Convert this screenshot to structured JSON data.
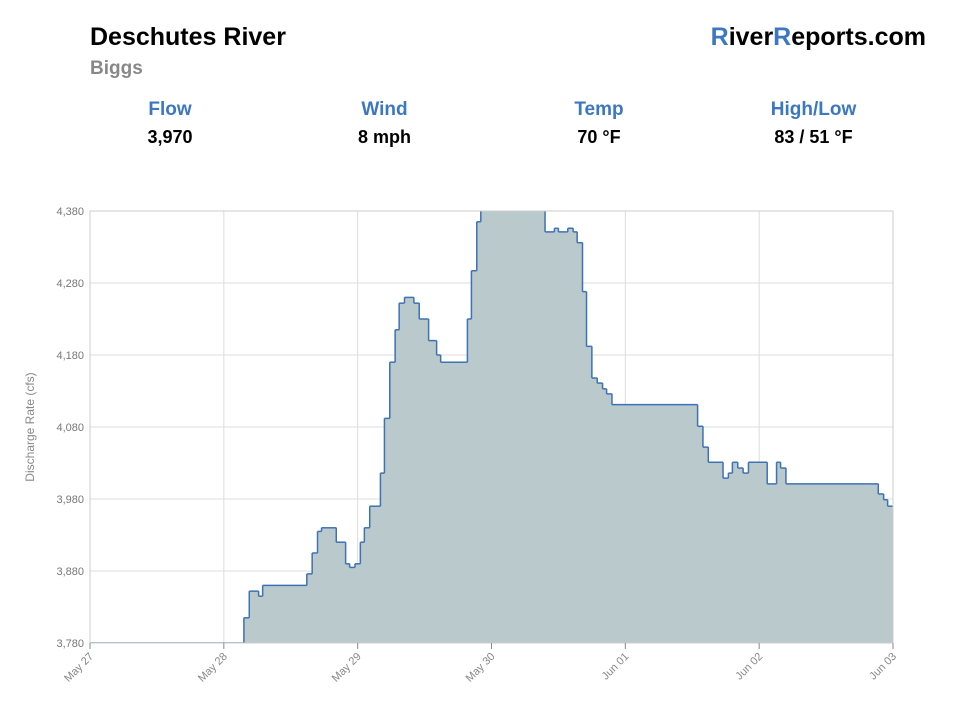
{
  "header": {
    "title": "Deschutes River",
    "subtitle": "Biggs",
    "logo_parts": [
      "R",
      "iver",
      "R",
      "eports.com"
    ]
  },
  "stats": [
    {
      "label": "Flow",
      "value": "3,970"
    },
    {
      "label": "Wind",
      "value": "8 mph"
    },
    {
      "label": "Temp",
      "value": "70 °F"
    },
    {
      "label": "High/Low",
      "value": "83 / 51 °F"
    }
  ],
  "chart_data": {
    "type": "step-area",
    "y_label": "Discharge Rate (cfs)",
    "color": "#3d72b4",
    "fill": "#bac9cc",
    "grid": true,
    "xlim": [
      0,
      6
    ],
    "xticks": [
      {
        "value": 0,
        "label": "May 27"
      },
      {
        "value": 1,
        "label": "May 28"
      },
      {
        "value": 2,
        "label": "May 29"
      },
      {
        "value": 3,
        "label": "May 30"
      },
      {
        "value": 4,
        "label": "Jun 01"
      },
      {
        "value": 5,
        "label": "Jun 02"
      },
      {
        "value": 6,
        "label": "Jun 03"
      }
    ],
    "ylim": [
      3780,
      4380
    ],
    "yticks": [
      {
        "value": 3780,
        "label": "3,780"
      },
      {
        "value": 3880,
        "label": "3,880"
      },
      {
        "value": 3980,
        "label": "3,980"
      },
      {
        "value": 4080,
        "label": "4,080"
      },
      {
        "value": 4180,
        "label": "4,180"
      },
      {
        "value": 4280,
        "label": "4,280"
      },
      {
        "value": 4380,
        "label": "4,380"
      }
    ],
    "x": [
      0,
      1.15,
      1.19,
      1.26,
      1.29,
      1.62,
      1.66,
      1.7,
      1.73,
      1.84,
      1.91,
      1.94,
      1.98,
      2.02,
      2.05,
      2.09,
      2.17,
      2.2,
      2.24,
      2.28,
      2.31,
      2.35,
      2.42,
      2.46,
      2.53,
      2.59,
      2.62,
      2.82,
      2.85,
      2.89,
      2.92,
      3.4,
      3.47,
      3.5,
      3.57,
      3.61,
      3.64,
      3.68,
      3.71,
      3.75,
      3.79,
      3.83,
      3.86,
      3.9,
      4.54,
      4.58,
      4.62,
      4.73,
      4.77,
      4.8,
      4.84,
      4.88,
      4.92,
      5.06,
      5.13,
      5.16,
      5.2,
      5.89,
      5.93,
      5.96
    ],
    "values": [
      3780,
      3815,
      3852,
      3845,
      3860,
      3876,
      3905,
      3935,
      3940,
      3920,
      3890,
      3885,
      3890,
      3920,
      3940,
      3970,
      4016,
      4092,
      4170,
      4215,
      4252,
      4260,
      4252,
      4230,
      4200,
      4180,
      4170,
      4230,
      4297,
      4365,
      4400,
      4351,
      4356,
      4351,
      4356,
      4351,
      4336,
      4268,
      4192,
      4148,
      4141,
      4133,
      4126,
      4111,
      4081,
      4052,
      4031,
      4009,
      4016,
      4031,
      4023,
      4016,
      4031,
      4001,
      4031,
      4023,
      4001,
      3987,
      3979,
      3970
    ]
  }
}
